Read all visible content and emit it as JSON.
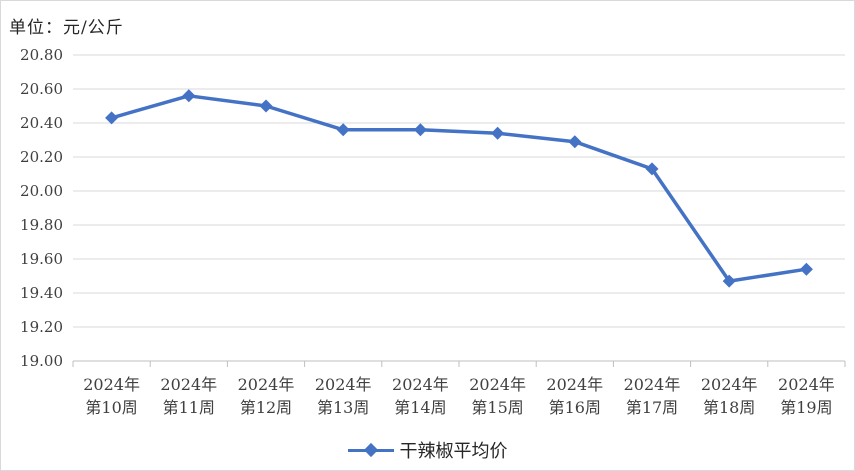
{
  "chart_data": {
    "type": "line",
    "unit_label": "单位：元/公斤",
    "categories": [
      [
        "2024年",
        "第10周"
      ],
      [
        "2024年",
        "第11周"
      ],
      [
        "2024年",
        "第12周"
      ],
      [
        "2024年",
        "第13周"
      ],
      [
        "2024年",
        "第14周"
      ],
      [
        "2024年",
        "第15周"
      ],
      [
        "2024年",
        "第16周"
      ],
      [
        "2024年",
        "第17周"
      ],
      [
        "2024年",
        "第18周"
      ],
      [
        "2024年",
        "第19周"
      ]
    ],
    "series": [
      {
        "name": "干辣椒平均价",
        "color": "#4472c4",
        "marker": "diamond",
        "values": [
          20.43,
          20.56,
          20.5,
          20.36,
          20.36,
          20.34,
          20.29,
          20.13,
          19.47,
          19.54
        ]
      }
    ],
    "ylim": [
      19.0,
      20.8
    ],
    "yticks": [
      "19.00",
      "19.20",
      "19.40",
      "19.60",
      "19.80",
      "20.00",
      "20.20",
      "20.40",
      "20.60",
      "20.80"
    ],
    "grid": true,
    "legend_position": "bottom"
  }
}
